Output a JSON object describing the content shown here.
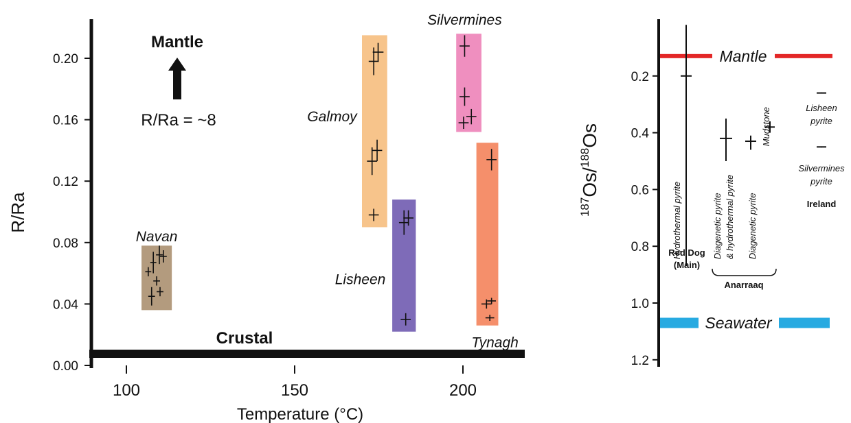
{
  "chart_data": [
    {
      "type": "scatter",
      "xlabel": "Temperature (°C)",
      "ylabel": "R/Ra",
      "xlim": [
        88,
        217
      ],
      "ylim": [
        0,
        0.22
      ],
      "xticks": [
        100,
        150,
        200
      ],
      "yticks": [
        0.0,
        0.04,
        0.08,
        0.12,
        0.16,
        0.2
      ],
      "ytick_labels": [
        "0.00",
        "0.04",
        "0.08",
        "0.12",
        "0.16",
        "0.20"
      ],
      "annotations": {
        "mantle": "Mantle",
        "ratio": "R/Ra = ~8",
        "crustal": "Crustal"
      },
      "groups": [
        {
          "name": "Navan",
          "color": "#b39b7e",
          "x_range": [
            104.5,
            113.5
          ],
          "y_range": [
            0.036,
            0.078
          ],
          "label_x": 109,
          "label_y": 0.084,
          "label_align": "middle",
          "points": [
            {
              "x": 109.8,
              "y": 0.072,
              "xerr": 1.0,
              "yerr": 0.006
            },
            {
              "x": 111.0,
              "y": 0.071,
              "xerr": 1.0,
              "yerr": 0.004
            },
            {
              "x": 108.0,
              "y": 0.067,
              "xerr": 0.9,
              "yerr": 0.007
            },
            {
              "x": 106.5,
              "y": 0.061,
              "xerr": 0.9,
              "yerr": 0.003
            },
            {
              "x": 109.0,
              "y": 0.055,
              "xerr": 1.0,
              "yerr": 0.003
            },
            {
              "x": 110.0,
              "y": 0.048,
              "xerr": 1.0,
              "yerr": 0.003
            },
            {
              "x": 107.5,
              "y": 0.045,
              "xerr": 1.0,
              "yerr": 0.006
            }
          ]
        },
        {
          "name": "Galmoy",
          "color": "#f7c48b",
          "x_range": [
            170.0,
            177.5
          ],
          "y_range": [
            0.09,
            0.215
          ],
          "label_x": 168.5,
          "label_y": 0.162,
          "label_align": "end",
          "points": [
            {
              "x": 174.8,
              "y": 0.204,
              "xerr": 1.6,
              "yerr": 0.006
            },
            {
              "x": 173.5,
              "y": 0.198,
              "xerr": 1.5,
              "yerr": 0.009
            },
            {
              "x": 174.5,
              "y": 0.14,
              "xerr": 1.5,
              "yerr": 0.007
            },
            {
              "x": 173.0,
              "y": 0.133,
              "xerr": 1.5,
              "yerr": 0.009
            },
            {
              "x": 173.5,
              "y": 0.098,
              "xerr": 1.5,
              "yerr": 0.004
            }
          ]
        },
        {
          "name": "Silvermines",
          "color": "#ef8fbf",
          "x_range": [
            198.0,
            205.5
          ],
          "y_range": [
            0.152,
            0.216
          ],
          "label_x": 200.5,
          "label_y": 0.225,
          "label_align": "middle",
          "points": [
            {
              "x": 200.5,
              "y": 0.208,
              "xerr": 1.5,
              "yerr": 0.007
            },
            {
              "x": 200.5,
              "y": 0.175,
              "xerr": 1.5,
              "yerr": 0.006
            },
            {
              "x": 202.5,
              "y": 0.162,
              "xerr": 1.5,
              "yerr": 0.005
            },
            {
              "x": 200.2,
              "y": 0.158,
              "xerr": 1.5,
              "yerr": 0.004
            }
          ]
        },
        {
          "name": "Lisheen",
          "color": "#7e6bb8",
          "x_range": [
            179.0,
            186.0
          ],
          "y_range": [
            0.022,
            0.108
          ],
          "label_x": 177.0,
          "label_y": 0.056,
          "label_align": "end",
          "points": [
            {
              "x": 182.5,
              "y": 0.093,
              "xerr": 1.5,
              "yerr": 0.008
            },
            {
              "x": 183.8,
              "y": 0.096,
              "xerr": 1.5,
              "yerr": 0.005
            },
            {
              "x": 183.0,
              "y": 0.03,
              "xerr": 1.5,
              "yerr": 0.004
            }
          ]
        },
        {
          "name": "Tynagh",
          "color": "#f58f6b",
          "x_range": [
            204.0,
            210.5
          ],
          "y_range": [
            0.026,
            0.145
          ],
          "label_x": 216.5,
          "label_y": 0.015,
          "label_align": "end",
          "points": [
            {
              "x": 208.5,
              "y": 0.134,
              "xerr": 1.5,
              "yerr": 0.007
            },
            {
              "x": 207.0,
              "y": 0.04,
              "xerr": 1.5,
              "yerr": 0.003
            },
            {
              "x": 208.5,
              "y": 0.042,
              "xerr": 1.3,
              "yerr": 0.002
            },
            {
              "x": 208.0,
              "y": 0.031,
              "xerr": 1.3,
              "yerr": 0.002
            }
          ]
        }
      ]
    },
    {
      "type": "scatter",
      "ylabel_main": "Os/",
      "ylabel_sup1": "187",
      "ylabel_sup2": "188",
      "ylabel_tail": "Os",
      "ylim": [
        0,
        1.2
      ],
      "y_inverted": true,
      "yticks": [
        0.2,
        0.4,
        0.6,
        0.8,
        1.0,
        1.2
      ],
      "ytick_labels": [
        "0.2",
        "0.4",
        "0.6",
        "0.8",
        "1.0",
        "1.2"
      ],
      "reference_lines": [
        {
          "name": "Mantle",
          "y": 0.13,
          "color": "#e32727"
        },
        {
          "name": "Seawater",
          "y": 1.07,
          "color": "#27aae1"
        }
      ],
      "samples": [
        {
          "label": "Hydrothermal pyrite",
          "y": 0.2,
          "y_low": 0.02,
          "y_high": 0.87,
          "x_half": 1
        },
        {
          "label": "Diagenetic pyrite & hydrothermal pyrite",
          "y": 0.42,
          "y_low": 0.35,
          "y_high": 0.5,
          "x_half": 1
        },
        {
          "label": "Diagenetic pyrite",
          "y": 0.43,
          "y_low": 0.41,
          "y_high": 0.46,
          "x_half": 1
        },
        {
          "label": "Mudstone",
          "y": 0.38,
          "y_low": 0.36,
          "y_high": 0.4,
          "x_half": 1
        },
        {
          "label": "Lisheen pyrite",
          "y": 0.26,
          "y_low": 0.258,
          "y_high": 0.262,
          "x_half": 1
        },
        {
          "label": "Silvermines pyrite",
          "y": 0.45,
          "y_low": 0.448,
          "y_high": 0.452,
          "x_half": 1
        }
      ],
      "location_labels": {
        "red_dog_1": "Red Dog",
        "red_dog_2": "(Main)",
        "anarraaq": "Anarraaq",
        "ireland": "Ireland"
      }
    }
  ]
}
